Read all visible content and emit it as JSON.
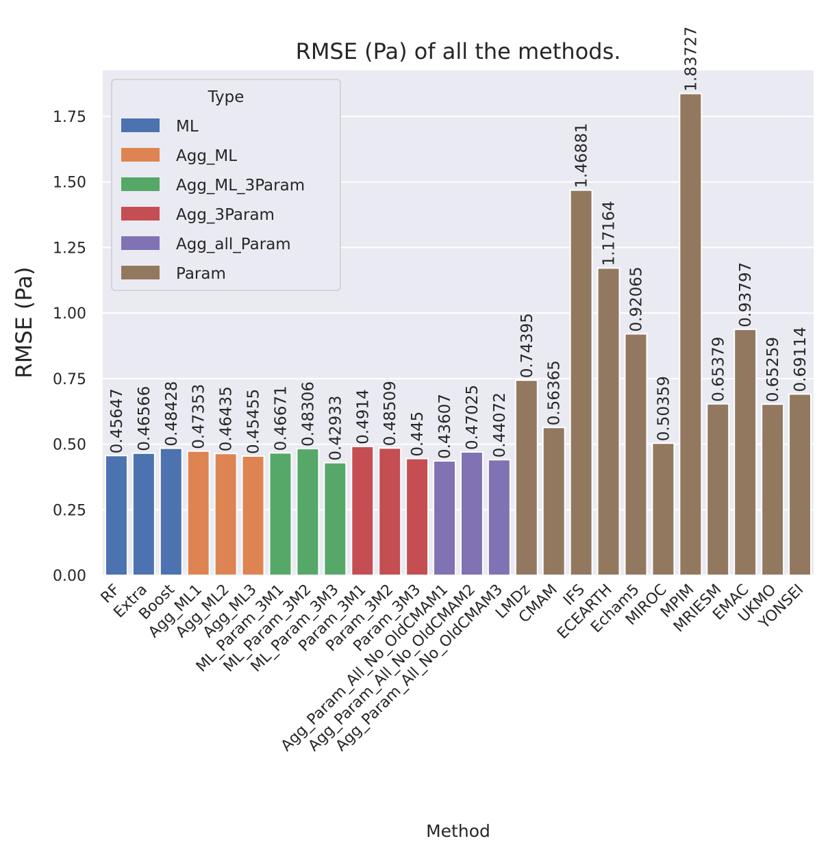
{
  "chart_data": {
    "type": "bar",
    "title": "RMSE (Pa) of all the methods.",
    "xlabel": "Method",
    "ylabel": "RMSE (Pa)",
    "ylim": [
      0,
      1.925
    ],
    "yticks": [
      "0.00",
      "0.25",
      "0.50",
      "0.75",
      "1.00",
      "1.25",
      "1.50",
      "1.75"
    ],
    "grid": true,
    "legend": {
      "title": "Type",
      "placement": "top-left",
      "entries": [
        {
          "name": "ML",
          "color": "#4c72b0"
        },
        {
          "name": "Agg_ML",
          "color": "#dd8452"
        },
        {
          "name": "Agg_ML_3Param",
          "color": "#55a868"
        },
        {
          "name": "Agg_3Param",
          "color": "#c44e52"
        },
        {
          "name": "Agg_all_Param",
          "color": "#8172b3"
        },
        {
          "name": "Param",
          "color": "#937860"
        }
      ]
    },
    "categories": [
      "RF",
      "Extra",
      "Boost",
      "Agg_ML1",
      "Agg_ML2",
      "Agg_ML3",
      "ML_Param_3M1",
      "ML_Param_3M2",
      "ML_Param_3M3",
      "Param_3M1",
      "Param_3M2",
      "Param_3M3",
      "Agg_Param_All_No_OldCMAM1",
      "Agg_Param_All_No_OldCMAM2",
      "Agg_Param_All_No_OldCMAM3",
      "LMDz",
      "CMAM",
      "IFS",
      "ECEARTH",
      "Echam5",
      "MIROC",
      "MPIM",
      "MRIESM",
      "EMAC",
      "UKMO",
      "YONSEI"
    ],
    "values": [
      0.45647,
      0.46566,
      0.48428,
      0.47353,
      0.46435,
      0.45455,
      0.46671,
      0.48306,
      0.42933,
      0.4914,
      0.48509,
      0.445,
      0.43607,
      0.47025,
      0.44072,
      0.74395,
      0.56365,
      1.46881,
      1.17164,
      0.92065,
      0.50359,
      1.83727,
      0.65379,
      0.93797,
      0.65259,
      0.69114
    ],
    "labels": [
      "0.45647",
      "0.46566",
      "0.48428",
      "0.47353",
      "0.46435",
      "0.45455",
      "0.46671",
      "0.48306",
      "0.42933",
      "0.4914",
      "0.48509",
      "0.445",
      "0.43607",
      "0.47025",
      "0.44072",
      "0.74395",
      "0.56365",
      "1.46881",
      "1.17164",
      "0.92065",
      "0.50359",
      "1.83727",
      "0.65379",
      "0.93797",
      "0.65259",
      "0.69114"
    ],
    "types": [
      "ML",
      "ML",
      "ML",
      "Agg_ML",
      "Agg_ML",
      "Agg_ML",
      "Agg_ML_3Param",
      "Agg_ML_3Param",
      "Agg_ML_3Param",
      "Agg_3Param",
      "Agg_3Param",
      "Agg_3Param",
      "Agg_all_Param",
      "Agg_all_Param",
      "Agg_all_Param",
      "Param",
      "Param",
      "Param",
      "Param",
      "Param",
      "Param",
      "Param",
      "Param",
      "Param",
      "Param",
      "Param"
    ]
  }
}
